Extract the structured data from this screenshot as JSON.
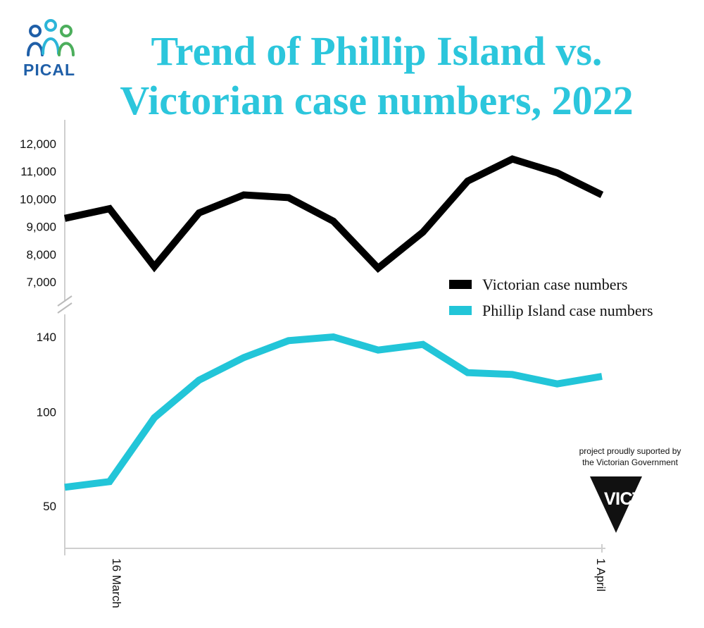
{
  "logo": {
    "text": "PICAL",
    "colors": [
      "#1f5fa8",
      "#2cb5d8",
      "#4cae5c"
    ]
  },
  "title": "Trend of Phillip Island vs. Victorian case numbers, 2022",
  "support": {
    "line1": "project proudly suported by",
    "line2": "the Victorian Government",
    "logo_text": "VICTORIA"
  },
  "chart_data": {
    "type": "line",
    "title": "Trend of Phillip Island vs. Victorian case numbers, 2022",
    "x_tick_labels": [
      "16 March",
      "1 April"
    ],
    "legend_position": "right",
    "grid": false,
    "broken_y_axis": true,
    "upper_panel": {
      "y_ticks": [
        7000,
        8000,
        9000,
        10000,
        11000,
        12000
      ],
      "y_tick_labels": [
        "7,000",
        "8,000",
        "9,000",
        "10,000",
        "11,000",
        "12,000"
      ],
      "ylim": [
        7000,
        12000
      ]
    },
    "lower_panel": {
      "y_ticks": [
        50,
        100,
        140
      ],
      "y_tick_labels": [
        "50",
        "100",
        "140"
      ],
      "ylim": [
        50,
        140
      ]
    },
    "series": [
      {
        "name": "Victorian case numbers",
        "color": "#000000",
        "panel": "upper",
        "values": [
          9300,
          9650,
          7550,
          9500,
          10150,
          10050,
          9200,
          7500,
          8800,
          10650,
          11450,
          10950,
          10150
        ]
      },
      {
        "name": "Phillip Island case numbers",
        "color": "#22c5d8",
        "panel": "lower",
        "values": [
          60,
          63,
          97,
          117,
          129,
          138,
          140,
          133,
          136,
          121,
          120,
          115,
          119
        ]
      }
    ]
  }
}
